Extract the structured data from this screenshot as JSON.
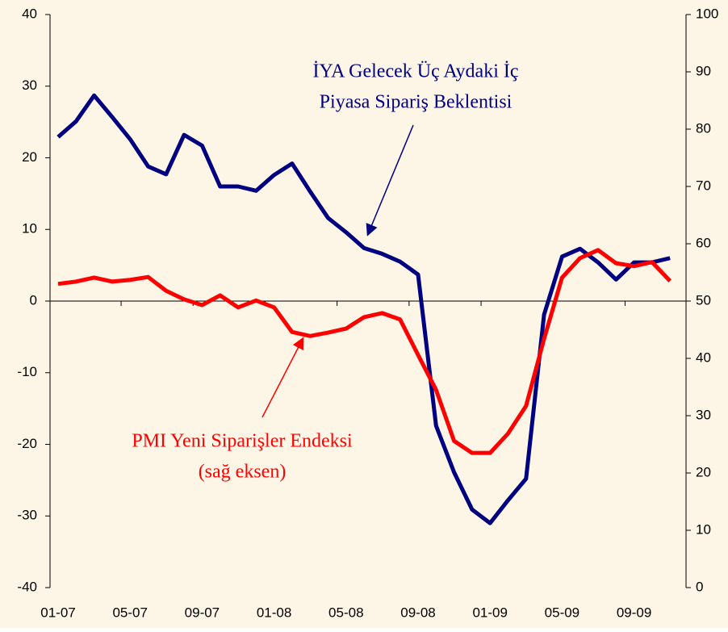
{
  "chart_data": {
    "type": "line",
    "categories": [
      "01-07",
      null,
      null,
      null,
      "05-07",
      null,
      null,
      null,
      "09-07",
      null,
      null,
      null,
      "01-08",
      null,
      null,
      null,
      "05-08",
      null,
      null,
      null,
      "09-08",
      null,
      null,
      null,
      "01-09",
      null,
      null,
      null,
      "05-09",
      null,
      null,
      null,
      "09-09",
      null,
      null
    ],
    "series": [
      {
        "name": "İYA Gelecek Üç Aydaki İç Piyasa Sipariş Beklentisi",
        "color": "#000080",
        "axis": "y",
        "values": [
          22.9,
          25.1,
          28.7,
          25.7,
          22.6,
          18.8,
          17.7,
          23.2,
          21.7,
          16.0,
          16.0,
          15.4,
          17.6,
          19.2,
          15.3,
          11.6,
          9.6,
          7.4,
          6.6,
          5.5,
          3.7,
          -17.4,
          -23.9,
          -29.1,
          -31.0,
          -27.8,
          -24.8,
          -1.9,
          6.2,
          7.3,
          5.4,
          3.0,
          5.4,
          5.4,
          6.0
        ]
      },
      {
        "name": "PMI Yeni Siparişler Endeksi (sağ eksen)",
        "color": "#ff0000",
        "axis": "y2",
        "values": [
          53.0,
          53.4,
          54.1,
          53.4,
          53.7,
          54.2,
          51.8,
          50.3,
          49.3,
          51.0,
          48.9,
          50.1,
          48.9,
          44.6,
          43.9,
          44.5,
          45.2,
          47.2,
          47.9,
          46.8,
          40.6,
          34.5,
          25.6,
          23.5,
          23.5,
          26.9,
          31.7,
          43.4,
          54.1,
          57.5,
          58.9,
          56.6,
          56.1,
          56.8,
          53.5
        ]
      }
    ],
    "annotations": [
      {
        "lines": [
          "İYA Gelecek Üç Aydaki İç",
          "Piyasa Sipariş Beklentisi"
        ],
        "color": "#000080"
      },
      {
        "lines": [
          "PMI Yeni Siparişler Endeksi",
          "(sağ eksen)"
        ],
        "color": "#ff0000"
      }
    ],
    "ylim": [
      -40,
      40
    ],
    "yticks": [
      -40,
      -30,
      -20,
      -10,
      0,
      10,
      20,
      30,
      40
    ],
    "y2lim": [
      0,
      100
    ],
    "y2ticks": [
      0,
      10,
      20,
      30,
      40,
      50,
      60,
      70,
      80,
      90,
      100
    ],
    "background": "#fdf5e6"
  }
}
